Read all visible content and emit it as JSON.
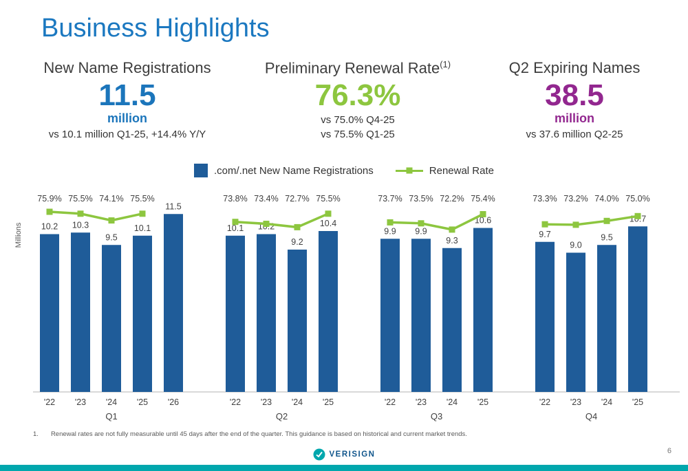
{
  "slide": {
    "title": "Business Highlights",
    "page_number": "6",
    "brand": "VERISIGN",
    "footnote_marker": "1.",
    "footnote_text": "Renewal rates are not fully measurable until 45 days after the end of the quarter. This guidance is based on historical and current market trends."
  },
  "colors": {
    "title-blue": "#1b78c0",
    "kpi-blue": "#1b75bb",
    "kpi-green": "#8dc63f",
    "kpi-purple": "#92278f",
    "bar-blue": "#1f5c99",
    "line-green": "#8dc63f",
    "teal": "#00a7ad",
    "footer-navy": "#11568c"
  },
  "kpis": {
    "registrations": {
      "title": "New Name Registrations",
      "value": "11.5",
      "unit": "million",
      "comparison": "vs 10.1 million Q1-25, +14.4% Y/Y"
    },
    "renewal": {
      "title": "Preliminary Renewal Rate",
      "superscript": "(1)",
      "value": "76.3%",
      "comparison1": "vs 75.0% Q4-25",
      "comparison2": "vs 75.5% Q1-25"
    },
    "expiring": {
      "title": "Q2 Expiring Names",
      "value": "38.5",
      "unit": "million",
      "comparison": "vs 37.6 million Q2-25"
    }
  },
  "chart_data": {
    "type": "bar+line",
    "ylabel": "Millions",
    "bar_color": "#1f5c99",
    "line_color": "#8dc63f",
    "ylim": [
      0,
      13
    ],
    "legend": [
      {
        "label": ".com/.net New Name Registrations",
        "marker": "bar"
      },
      {
        "label": "Renewal Rate",
        "marker": "line"
      }
    ],
    "groups": [
      {
        "label": "Q1",
        "years": [
          "'22",
          "'23",
          "'24",
          "'25",
          "'26"
        ],
        "values": [
          10.2,
          10.3,
          9.5,
          10.1,
          11.5
        ],
        "rates": [
          75.9,
          75.5,
          74.1,
          75.5,
          null
        ]
      },
      {
        "label": "Q2",
        "years": [
          "'22",
          "'23",
          "'24",
          "'25"
        ],
        "values": [
          10.1,
          10.2,
          9.2,
          10.4
        ],
        "rates": [
          73.8,
          73.4,
          72.7,
          75.5
        ]
      },
      {
        "label": "Q3",
        "years": [
          "'22",
          "'23",
          "'24",
          "'25"
        ],
        "values": [
          9.9,
          9.9,
          9.3,
          10.6
        ],
        "rates": [
          73.7,
          73.5,
          72.2,
          75.4
        ]
      },
      {
        "label": "Q4",
        "years": [
          "'22",
          "'23",
          "'24",
          "'25"
        ],
        "values": [
          9.7,
          9.0,
          9.5,
          10.7
        ],
        "rates": [
          73.3,
          73.2,
          74.0,
          75.0
        ]
      }
    ]
  }
}
